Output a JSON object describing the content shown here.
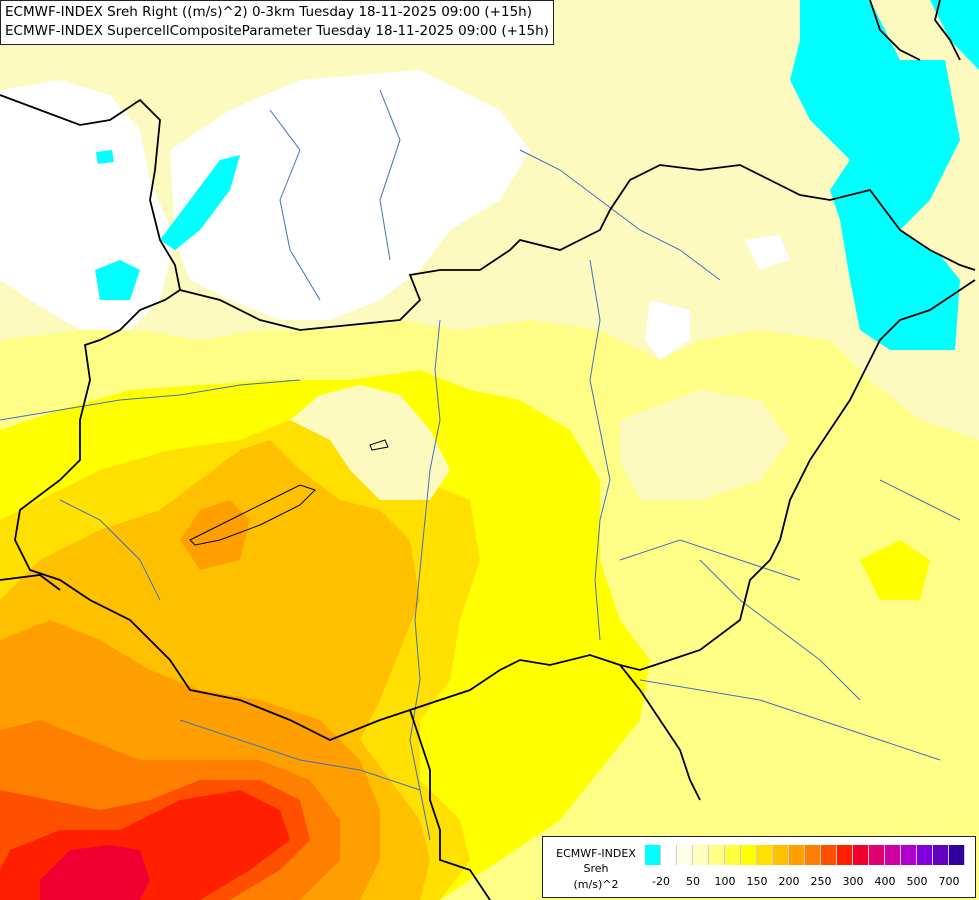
{
  "header": {
    "line1": "ECMWF-INDEX Sreh Right ((m/s)^2) 0-3km Tuesday 18-11-2025 09:00 (+15h)",
    "line2": "ECMWF-INDEX SupercellCompositeParameter Tuesday 18-11-2025 09:00 (+15h)"
  },
  "legend": {
    "model": "ECMWF-INDEX",
    "parameter": "Sreh",
    "unit": "(m/s)^2",
    "colors": [
      "#00ffff",
      "#ffffff",
      "#ffffe8",
      "#ffffc0",
      "#ffff88",
      "#ffff40",
      "#ffff00",
      "#ffe000",
      "#ffc000",
      "#ffa000",
      "#ff8000",
      "#ff5000",
      "#ff2000",
      "#f00030",
      "#e00070",
      "#d000a0",
      "#b000d0",
      "#8000e0",
      "#6000c0",
      "#3000a0"
    ],
    "tick_labels": [
      "-20",
      "50",
      "100",
      "150",
      "200",
      "250",
      "300",
      "400",
      "500",
      "700"
    ]
  },
  "map": {
    "colors": {
      "cyan": "#00ffff",
      "white": "#ffffff",
      "pale": "#fdfac0",
      "light_yellow": "#ffff88",
      "yellow": "#ffff00",
      "gold": "#ffe000",
      "amber": "#ffc000",
      "orange": "#ffa000",
      "dark_orange": "#ff8000",
      "red_orange": "#ff5000",
      "red": "#ff2000",
      "crimson": "#f00030",
      "border": "#000000",
      "river": "#4070c0"
    }
  }
}
